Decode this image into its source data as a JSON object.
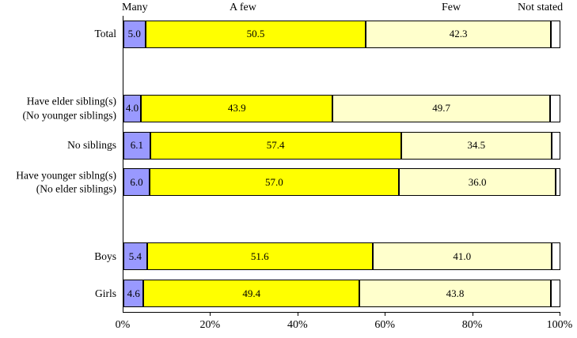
{
  "chart_data": {
    "type": "bar",
    "orientation": "horizontal",
    "stacked": true,
    "title": "",
    "xlabel": "",
    "ylabel": "",
    "xlim": [
      0,
      100
    ],
    "grid": false,
    "legend_position": "top-as-column-headers",
    "x_ticks": [
      "0%",
      "20%",
      "40%",
      "60%",
      "80%",
      "100%"
    ],
    "series_headers": [
      {
        "label": "Many"
      },
      {
        "label": "A few"
      },
      {
        "label": "Few"
      },
      {
        "label": "Not stated"
      }
    ],
    "colors_by_series": {
      "Many": "#9999FF",
      "A few": "#FFFF00",
      "Few": "#FFFFCC",
      "Not stated": "#FFFFFF"
    },
    "border_color": "#000000",
    "categories": [
      "Total",
      "Have elder sibling(s) (No younger siblings)",
      "No siblings",
      "Have younger siblng(s) (No elder siblings)",
      "Boys",
      "Girls"
    ],
    "series": [
      {
        "name": "Many",
        "values": [
          5.0,
          4.0,
          6.1,
          6.0,
          5.4,
          4.6
        ]
      },
      {
        "name": "A few",
        "values": [
          50.5,
          43.9,
          57.4,
          57.0,
          51.6,
          49.4
        ]
      },
      {
        "name": "Few",
        "values": [
          42.3,
          49.7,
          34.5,
          36.0,
          41.0,
          43.8
        ]
      },
      {
        "name": "Not stated",
        "values": [
          2.2,
          2.4,
          2.0,
          1.0,
          2.0,
          2.2
        ]
      }
    ],
    "rows": [
      {
        "slot": 0,
        "label_lines": [
          "Total"
        ],
        "segments": [
          {
            "series": "Many",
            "value": 5.0,
            "label": "5.0"
          },
          {
            "series": "A few",
            "value": 50.5,
            "label": "50.5"
          },
          {
            "series": "Few",
            "value": 42.3,
            "label": "42.3"
          },
          {
            "series": "Not stated",
            "value": 2.2,
            "label": ""
          }
        ]
      },
      {
        "slot": 2,
        "label_lines": [
          "Have elder sibling(s)",
          "(No younger siblings)"
        ],
        "segments": [
          {
            "series": "Many",
            "value": 4.0,
            "label": "4.0"
          },
          {
            "series": "A few",
            "value": 43.9,
            "label": "43.9"
          },
          {
            "series": "Few",
            "value": 49.7,
            "label": "49.7"
          },
          {
            "series": "Not stated",
            "value": 2.4,
            "label": ""
          }
        ]
      },
      {
        "slot": 3,
        "label_lines": [
          "No siblings"
        ],
        "segments": [
          {
            "series": "Many",
            "value": 6.1,
            "label": "6.1"
          },
          {
            "series": "A few",
            "value": 57.4,
            "label": "57.4"
          },
          {
            "series": "Few",
            "value": 34.5,
            "label": "34.5"
          },
          {
            "series": "Not stated",
            "value": 2.0,
            "label": ""
          }
        ]
      },
      {
        "slot": 4,
        "label_lines": [
          "Have younger siblng(s)",
          "(No elder siblings)"
        ],
        "segments": [
          {
            "series": "Many",
            "value": 6.0,
            "label": "6.0"
          },
          {
            "series": "A few",
            "value": 57.0,
            "label": "57.0"
          },
          {
            "series": "Few",
            "value": 36.0,
            "label": "36.0"
          },
          {
            "series": "Not stated",
            "value": 1.0,
            "label": ""
          }
        ]
      },
      {
        "slot": 6,
        "label_lines": [
          "Boys"
        ],
        "segments": [
          {
            "series": "Many",
            "value": 5.4,
            "label": "5.4"
          },
          {
            "series": "A few",
            "value": 51.6,
            "label": "51.6"
          },
          {
            "series": "Few",
            "value": 41.0,
            "label": "41.0"
          },
          {
            "series": "Not stated",
            "value": 2.0,
            "label": ""
          }
        ]
      },
      {
        "slot": 7,
        "label_lines": [
          "Girls"
        ],
        "segments": [
          {
            "series": "Many",
            "value": 4.6,
            "label": "4.6"
          },
          {
            "series": "A few",
            "value": 49.4,
            "label": "49.4"
          },
          {
            "series": "Few",
            "value": 43.8,
            "label": "43.8"
          },
          {
            "series": "Not stated",
            "value": 2.2,
            "label": ""
          }
        ]
      }
    ]
  }
}
